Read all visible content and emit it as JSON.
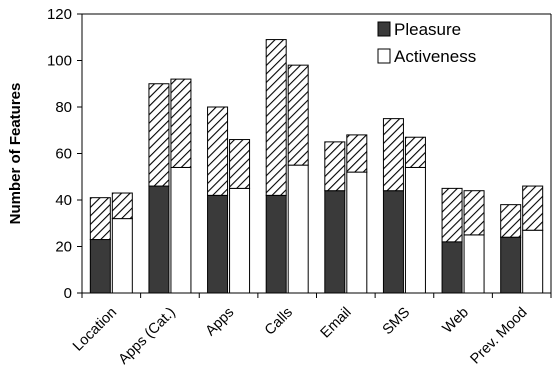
{
  "chart_data": {
    "type": "bar",
    "stacked": true,
    "title": "",
    "xlabel": "",
    "ylabel": "Number of Features",
    "ylim": [
      0,
      120
    ],
    "yticks": [
      0,
      20,
      40,
      60,
      80,
      100,
      120
    ],
    "grid": false,
    "legend_position": "top-right",
    "categories": [
      "Location",
      "Apps (Cat.)",
      "Apps",
      "Calls",
      "Email",
      "SMS",
      "Web",
      "Prev. Mood"
    ],
    "series": [
      {
        "name": "Pleasure",
        "color": "#3a3a3a",
        "base": [
          23,
          46,
          42,
          42,
          44,
          44,
          22,
          24
        ],
        "total": [
          41,
          90,
          80,
          109,
          65,
          75,
          45,
          38
        ]
      },
      {
        "name": "Activeness",
        "color": "#ffffff",
        "base": [
          32,
          54,
          45,
          55,
          52,
          54,
          25,
          27
        ],
        "total": [
          43,
          92,
          66,
          98,
          68,
          67,
          44,
          46
        ]
      }
    ],
    "upper_segment_pattern": "diagonal-hatch"
  }
}
